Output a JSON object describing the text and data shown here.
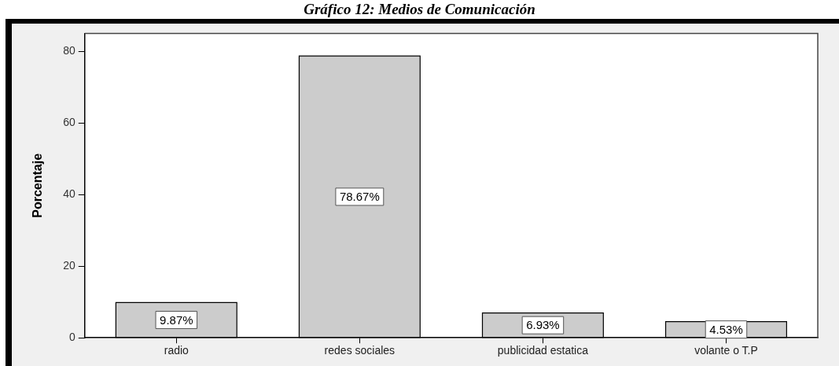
{
  "chart_data": {
    "type": "bar",
    "title": "Gráfico 12: Medios de Comunicación",
    "ylabel": "Porcentaje",
    "categories": [
      "radio",
      "redes sociales",
      "publicidad estatica",
      "volante o T.P"
    ],
    "values": [
      9.87,
      78.67,
      6.93,
      4.53
    ],
    "color": "#cccccc",
    "value_labels": [
      "9.87%",
      "78.67%",
      "6.93%",
      "4.53%"
    ],
    "ylim": [
      0,
      85
    ],
    "yticks": [
      0,
      20,
      40,
      60,
      80
    ]
  }
}
